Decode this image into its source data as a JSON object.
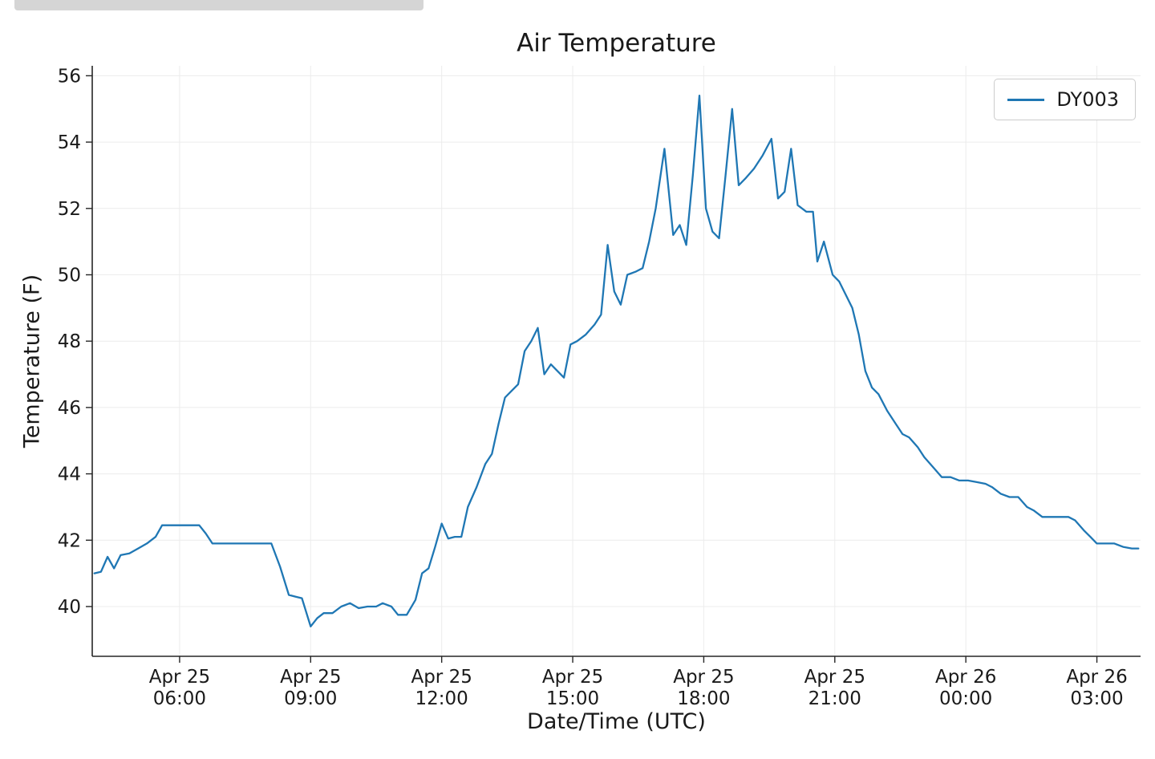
{
  "chart_data": {
    "type": "line",
    "title": "Air Temperature",
    "xlabel": "Date/Time (UTC)",
    "ylabel": "Temperature (F)",
    "grid": true,
    "background_color": "#ffffff",
    "grid_color": "#ececec",
    "axis_color": "#262626",
    "text_color": "#1a1a1a",
    "legend": {
      "position": "top-right",
      "entries": [
        {
          "label": "DY003",
          "color": "#1f77b4"
        }
      ]
    },
    "xlim_hours": [
      4.0,
      28.0
    ],
    "ylim": [
      38.5,
      56.3
    ],
    "y_ticks": [
      40,
      42,
      44,
      46,
      48,
      50,
      52,
      54,
      56
    ],
    "x_ticks": [
      {
        "hour": 6,
        "line1": "Apr 25",
        "line2": "06:00"
      },
      {
        "hour": 9,
        "line1": "Apr 25",
        "line2": "09:00"
      },
      {
        "hour": 12,
        "line1": "Apr 25",
        "line2": "12:00"
      },
      {
        "hour": 15,
        "line1": "Apr 25",
        "line2": "15:00"
      },
      {
        "hour": 18,
        "line1": "Apr 25",
        "line2": "18:00"
      },
      {
        "hour": 21,
        "line1": "Apr 25",
        "line2": "21:00"
      },
      {
        "hour": 24,
        "line1": "Apr 26",
        "line2": "00:00"
      },
      {
        "hour": 27,
        "line1": "Apr 26",
        "line2": "03:00"
      }
    ],
    "series": [
      {
        "name": "DY003",
        "color": "#1f77b4",
        "x_unit": "hours since Apr 25 00:00 UTC",
        "points": [
          [
            4.05,
            41.0
          ],
          [
            4.2,
            41.05
          ],
          [
            4.35,
            41.5
          ],
          [
            4.5,
            41.15
          ],
          [
            4.65,
            41.55
          ],
          [
            4.85,
            41.6
          ],
          [
            5.05,
            41.75
          ],
          [
            5.25,
            41.9
          ],
          [
            5.45,
            42.1
          ],
          [
            5.6,
            42.45
          ],
          [
            5.8,
            42.45
          ],
          [
            6.0,
            42.45
          ],
          [
            6.2,
            42.45
          ],
          [
            6.45,
            42.45
          ],
          [
            6.6,
            42.2
          ],
          [
            6.75,
            41.9
          ],
          [
            7.0,
            41.9
          ],
          [
            7.25,
            41.9
          ],
          [
            7.5,
            41.9
          ],
          [
            7.75,
            41.9
          ],
          [
            8.0,
            41.9
          ],
          [
            8.1,
            41.9
          ],
          [
            8.3,
            41.2
          ],
          [
            8.5,
            40.35
          ],
          [
            8.65,
            40.3
          ],
          [
            8.8,
            40.25
          ],
          [
            9.0,
            39.4
          ],
          [
            9.15,
            39.65
          ],
          [
            9.3,
            39.8
          ],
          [
            9.5,
            39.8
          ],
          [
            9.7,
            40.0
          ],
          [
            9.9,
            40.1
          ],
          [
            10.1,
            39.95
          ],
          [
            10.3,
            40.0
          ],
          [
            10.5,
            40.0
          ],
          [
            10.65,
            40.1
          ],
          [
            10.85,
            40.0
          ],
          [
            11.0,
            39.75
          ],
          [
            11.2,
            39.75
          ],
          [
            11.4,
            40.2
          ],
          [
            11.55,
            41.0
          ],
          [
            11.7,
            41.15
          ],
          [
            11.85,
            41.8
          ],
          [
            12.0,
            42.5
          ],
          [
            12.15,
            42.05
          ],
          [
            12.3,
            42.1
          ],
          [
            12.45,
            42.1
          ],
          [
            12.6,
            43.0
          ],
          [
            12.8,
            43.6
          ],
          [
            13.0,
            44.3
          ],
          [
            13.15,
            44.6
          ],
          [
            13.3,
            45.5
          ],
          [
            13.45,
            46.3
          ],
          [
            13.6,
            46.5
          ],
          [
            13.75,
            46.7
          ],
          [
            13.9,
            47.7
          ],
          [
            14.05,
            48.0
          ],
          [
            14.2,
            48.4
          ],
          [
            14.35,
            47.0
          ],
          [
            14.5,
            47.3
          ],
          [
            14.65,
            47.1
          ],
          [
            14.8,
            46.9
          ],
          [
            14.95,
            47.9
          ],
          [
            15.1,
            48.0
          ],
          [
            15.3,
            48.2
          ],
          [
            15.5,
            48.5
          ],
          [
            15.65,
            48.8
          ],
          [
            15.8,
            50.9
          ],
          [
            15.95,
            49.5
          ],
          [
            16.1,
            49.1
          ],
          [
            16.25,
            50.0
          ],
          [
            16.45,
            50.1
          ],
          [
            16.6,
            50.2
          ],
          [
            16.75,
            51.0
          ],
          [
            16.9,
            52.0
          ],
          [
            17.1,
            53.8
          ],
          [
            17.3,
            51.2
          ],
          [
            17.45,
            51.5
          ],
          [
            17.6,
            50.9
          ],
          [
            17.75,
            53.0
          ],
          [
            17.9,
            55.4
          ],
          [
            18.05,
            52.0
          ],
          [
            18.2,
            51.3
          ],
          [
            18.35,
            51.1
          ],
          [
            18.5,
            53.0
          ],
          [
            18.65,
            55.0
          ],
          [
            18.8,
            52.7
          ],
          [
            18.95,
            52.9
          ],
          [
            19.15,
            53.2
          ],
          [
            19.35,
            53.6
          ],
          [
            19.55,
            54.1
          ],
          [
            19.7,
            52.3
          ],
          [
            19.85,
            52.5
          ],
          [
            20.0,
            53.8
          ],
          [
            20.15,
            52.1
          ],
          [
            20.35,
            51.9
          ],
          [
            20.5,
            51.9
          ],
          [
            20.6,
            50.4
          ],
          [
            20.75,
            51.0
          ],
          [
            20.95,
            50.0
          ],
          [
            21.1,
            49.8
          ],
          [
            21.25,
            49.4
          ],
          [
            21.4,
            49.0
          ],
          [
            21.55,
            48.2
          ],
          [
            21.7,
            47.1
          ],
          [
            21.85,
            46.6
          ],
          [
            22.0,
            46.4
          ],
          [
            22.2,
            45.9
          ],
          [
            22.4,
            45.5
          ],
          [
            22.55,
            45.2
          ],
          [
            22.7,
            45.1
          ],
          [
            22.9,
            44.8
          ],
          [
            23.05,
            44.5
          ],
          [
            23.25,
            44.2
          ],
          [
            23.45,
            43.9
          ],
          [
            23.65,
            43.9
          ],
          [
            23.85,
            43.8
          ],
          [
            24.05,
            43.8
          ],
          [
            24.25,
            43.75
          ],
          [
            24.45,
            43.7
          ],
          [
            24.6,
            43.6
          ],
          [
            24.8,
            43.4
          ],
          [
            25.0,
            43.3
          ],
          [
            25.2,
            43.3
          ],
          [
            25.4,
            43.0
          ],
          [
            25.55,
            42.9
          ],
          [
            25.75,
            42.7
          ],
          [
            25.95,
            42.7
          ],
          [
            26.15,
            42.7
          ],
          [
            26.35,
            42.7
          ],
          [
            26.5,
            42.6
          ],
          [
            26.7,
            42.3
          ],
          [
            26.85,
            42.1
          ],
          [
            27.0,
            41.9
          ],
          [
            27.2,
            41.9
          ],
          [
            27.4,
            41.9
          ],
          [
            27.6,
            41.8
          ],
          [
            27.8,
            41.75
          ],
          [
            27.95,
            41.75
          ]
        ]
      }
    ]
  }
}
